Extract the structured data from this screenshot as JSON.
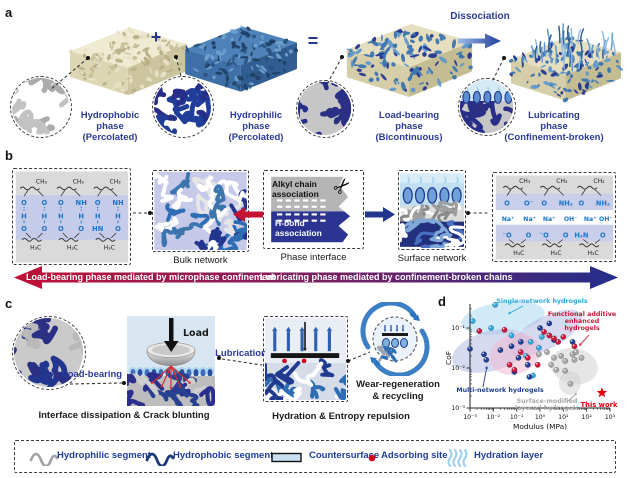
{
  "figure": {
    "panel_labels": {
      "a": "a",
      "b": "b",
      "c": "c",
      "d": "d"
    }
  },
  "panel_a": {
    "hydrophobic_label": "Hydrophobic\nphase\n(Percolated)",
    "plus": "+",
    "hydrophilic_label": "Hydrophilic\nphase\n(Percolated)",
    "equals": "=",
    "load_bearing_label": "Load-bearing\nphase\n(Bicontinuous)",
    "dissociation_label": "Dissociation",
    "lubricating_label": "Lubricating\nphase\n(Confinement-broken)"
  },
  "panel_b": {
    "bulk_label": "Bulk network",
    "interface_label": "Phase interface",
    "alkyl_label": "Alkyl chain\nassociation",
    "hbond_label": "H-bond\nassociation",
    "scissors_glyph": "✂",
    "surface_label": "Surface network",
    "banner_left": "Load-bearing phase mediated by microphase confinement",
    "banner_right": "Lubricating phase mediated by confinement-broken chains",
    "chem_left": {
      "top": [
        "CH₃",
        "CH₃",
        "CH₃"
      ],
      "bottom": [
        "H₃C",
        "H₃C",
        "H₃C"
      ],
      "pairs": [
        {
          "t": [
            "O",
            "O"
          ],
          "m": [
            "H",
            "H"
          ],
          "b": [
            "O",
            "O"
          ]
        },
        {
          "t": [
            "O",
            "NH"
          ],
          "m": [
            "H",
            "H"
          ],
          "b": [
            "O",
            "O"
          ]
        },
        {
          "t": [
            "O",
            "NH"
          ],
          "m": [
            "H",
            "H"
          ],
          "b": [
            "HN",
            "O"
          ]
        }
      ]
    },
    "chem_right": {
      "top": [
        "CH₃",
        "CH₃",
        "CH₃"
      ],
      "row1": [
        [
          "O",
          "O⁻"
        ],
        [
          "O",
          "NH₂"
        ],
        [
          "O",
          "NH₂"
        ]
      ],
      "ions": [
        "Na⁺",
        "Na⁺",
        "Na⁺",
        "OH⁻",
        "Na⁺",
        "OH⁻"
      ],
      "row2": [
        [
          "⁻O",
          "O"
        ],
        [
          "⁻O",
          "O"
        ],
        [
          "H₃N",
          "O"
        ]
      ],
      "bottom": [
        "H₃C",
        "H₃C",
        "H₃C"
      ]
    }
  },
  "panel_c": {
    "load_bearing_label": "Load-bearing",
    "load_label": "Load",
    "lubrication_label": "Lubrication",
    "wear_label": "Wear-regeneration\n& recycling",
    "caption_left": "Interface dissipation & Crack blunting",
    "caption_right": "Hydration & Entropy repulsion"
  },
  "chart_data": {
    "type": "scatter",
    "xlabel": "Modulus (MPa)",
    "ylabel": "CoF",
    "x_scale": "log",
    "y_scale": "log",
    "xlim": [
      0.001,
      1000
    ],
    "ylim": [
      0.001,
      0.4
    ],
    "x_ticks": [
      "10⁻³",
      "10⁻²",
      "10⁻¹",
      "10⁰",
      "10¹",
      "10²",
      "10³"
    ],
    "y_ticks": [
      "10⁻¹",
      "10⁻²",
      "10⁻³"
    ],
    "legend_position": "annotations-inside",
    "grid": false,
    "series": [
      {
        "name": "single_network",
        "label": "Single-network hydrogels",
        "color": "#2FA8DC",
        "region_color": "#A9D9F0",
        "points": [
          [
            0.012,
            0.38
          ],
          [
            0.0013,
            0.15
          ],
          [
            0.008,
            0.1
          ],
          [
            0.06,
            0.065
          ],
          [
            0.4,
            0.045
          ],
          [
            0.9,
            0.032
          ],
          [
            0.25,
            0.02
          ],
          [
            0.5,
            0.0065
          ],
          [
            1.2,
            0.06
          ]
        ]
      },
      {
        "name": "multi_network",
        "label": "Multi-network hydrogels",
        "color": "#1F3F94",
        "region_color": "#B4BCE6",
        "points": [
          [
            0.001,
            0.03
          ],
          [
            0.004,
            0.022
          ],
          [
            0.02,
            0.028
          ],
          [
            0.005,
            0.016
          ],
          [
            0.06,
            0.035
          ],
          [
            0.15,
            0.045
          ],
          [
            0.12,
            0.018
          ],
          [
            0.3,
            0.012
          ],
          [
            0.08,
            0.008
          ],
          [
            0.35,
            0.006
          ],
          [
            1.0,
            0.1
          ],
          [
            2.5,
            0.13
          ],
          [
            4,
            0.05
          ],
          [
            25,
            0.045
          ]
        ]
      },
      {
        "name": "functional_additive",
        "label": "Functional additive\nenhanced\nhydrogels",
        "color": "#CE1639",
        "region_color": "#F0B9CF",
        "points": [
          [
            0.0025,
            0.084
          ],
          [
            0.03,
            0.09
          ],
          [
            0.05,
            0.012
          ],
          [
            0.08,
            0.009
          ],
          [
            0.15,
            0.025
          ],
          [
            0.3,
            0.018
          ],
          [
            0.8,
            0.012
          ],
          [
            1.5,
            0.08
          ],
          [
            2.5,
            0.065
          ],
          [
            4,
            0.055
          ],
          [
            6,
            0.045
          ],
          [
            10,
            0.06
          ],
          [
            30,
            0.035
          ]
        ]
      },
      {
        "name": "surface_modified",
        "label": "Surface-modified\nlayered hydrogels",
        "color": "#A8A8A8",
        "region_color": "#D2D2D2",
        "points": [
          [
            0.9,
            0.022
          ],
          [
            2,
            0.025
          ],
          [
            3,
            0.012
          ],
          [
            5,
            0.009
          ],
          [
            4,
            0.018
          ],
          [
            8,
            0.02
          ],
          [
            12,
            0.015
          ],
          [
            25,
            0.022
          ],
          [
            35,
            0.025
          ],
          [
            30,
            0.016
          ],
          [
            12,
            0.0085
          ],
          [
            20,
            0.004
          ],
          [
            60,
            0.018
          ]
        ]
      }
    ],
    "this_work": {
      "label": "This work",
      "point": [
        450,
        0.0024
      ],
      "color": "#E8000D"
    }
  },
  "legend": {
    "items": [
      {
        "icon": "hydrophilic-squiggle-icon",
        "label": "Hydrophilic segment"
      },
      {
        "icon": "hydrophobic-squiggle-icon",
        "label": "Hydrophobic segment"
      },
      {
        "icon": "countersurface-icon",
        "label": "Countersurface"
      },
      {
        "icon": "adsorbing-site-icon",
        "label": "Adsorbing site"
      },
      {
        "icon": "hydration-layer-icon",
        "label": "Hydration layer"
      }
    ]
  },
  "colors": {
    "accent_blue": "#23368F",
    "red": "#C41230",
    "navy": "#1F3F94",
    "cyan": "#2FA8DC",
    "gray": "#A8A8A8"
  }
}
